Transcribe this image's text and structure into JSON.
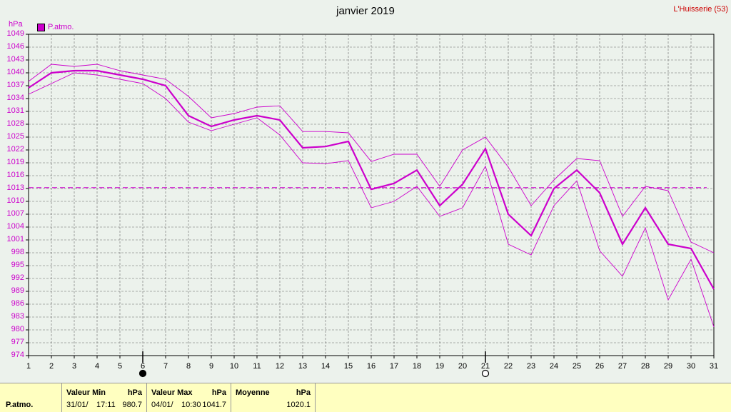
{
  "title": "janvier 2019",
  "station": "L'Huisserie (53)",
  "unit": "hPa",
  "legend": {
    "label": "P.atmo.",
    "color": "#cc00cc"
  },
  "chart_data": {
    "type": "line",
    "title": "janvier 2019",
    "ylabel": "hPa",
    "ylim": [
      974,
      1049
    ],
    "yticks": [
      974,
      977,
      980,
      983,
      986,
      989,
      992,
      995,
      998,
      1001,
      1004,
      1007,
      1010,
      1013,
      1016,
      1019,
      1022,
      1025,
      1028,
      1031,
      1034,
      1037,
      1040,
      1043,
      1046,
      1049
    ],
    "x": [
      1,
      2,
      3,
      4,
      5,
      6,
      7,
      8,
      9,
      10,
      11,
      12,
      13,
      14,
      15,
      16,
      17,
      18,
      19,
      20,
      21,
      22,
      23,
      24,
      25,
      26,
      27,
      28,
      29,
      30,
      31
    ],
    "legend_position": "top-left",
    "grid": true,
    "mean_line": 1013.2,
    "series": [
      {
        "name": "P.atmo.",
        "role": "mean",
        "values": [
          1036.5,
          1040.0,
          1040.5,
          1040.5,
          1039.5,
          1038.5,
          1037.0,
          1030.0,
          1027.5,
          1029.0,
          1030.0,
          1029.0,
          1022.5,
          1022.8,
          1024.0,
          1012.8,
          1014.2,
          1017.3,
          1009.0,
          1014.0,
          1022.3,
          1007.0,
          1002.0,
          1013.0,
          1017.3,
          1012.0,
          1000.0,
          1008.5,
          1000.0,
          999.0,
          989.5
        ]
      },
      {
        "role": "max",
        "values": [
          1038.0,
          1042.0,
          1041.5,
          1042.0,
          1040.5,
          1039.5,
          1038.5,
          1034.5,
          1029.5,
          1030.5,
          1032.0,
          1032.3,
          1026.3,
          1026.3,
          1026.0,
          1019.3,
          1021.0,
          1021.0,
          1013.5,
          1022.0,
          1025.0,
          1018.0,
          1009.0,
          1015.0,
          1020.0,
          1019.5,
          1006.5,
          1013.5,
          1012.5,
          1000.5,
          998.0
        ]
      },
      {
        "role": "min",
        "values": [
          1035.0,
          1037.5,
          1040.0,
          1039.5,
          1038.5,
          1037.5,
          1034.0,
          1028.5,
          1026.5,
          1028.0,
          1029.5,
          1025.5,
          1019.0,
          1018.8,
          1019.5,
          1008.5,
          1010.0,
          1013.5,
          1006.5,
          1008.5,
          1018.2,
          1000.0,
          997.5,
          1009.0,
          1014.8,
          998.5,
          992.5,
          1003.8,
          987.0,
          996.5,
          980.7
        ]
      }
    ],
    "markers": [
      {
        "x": 6,
        "symbol": "filled-circle"
      },
      {
        "x": 21,
        "symbol": "open-circle"
      }
    ]
  },
  "stats": {
    "row_label": "P.atmo.",
    "min": {
      "header": "Valeur Min",
      "unit": "hPa",
      "date": "31/01/",
      "time": "17:11",
      "value": "980.7"
    },
    "max": {
      "header": "Valeur Max",
      "unit": "hPa",
      "date": "04/01/",
      "time": "10:30",
      "value": "1041.7"
    },
    "avg": {
      "header": "Moyenne",
      "unit": "hPa",
      "value": "1020.1"
    }
  }
}
